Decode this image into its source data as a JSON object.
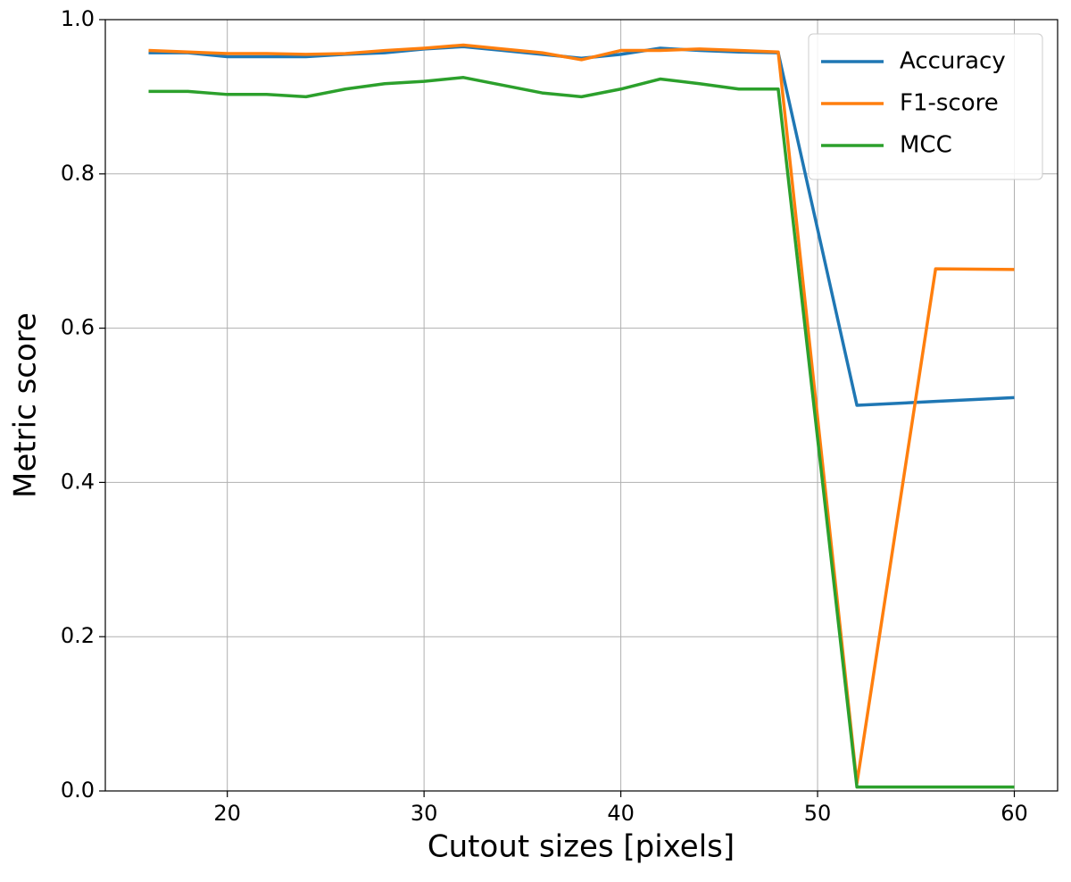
{
  "chart_data": {
    "type": "line",
    "x_label": "Cutout sizes [pixels]",
    "y_label": "Metric score",
    "x": [
      16,
      18,
      20,
      22,
      24,
      26,
      28,
      30,
      32,
      34,
      36,
      38,
      40,
      42,
      44,
      46,
      48,
      52,
      56,
      60
    ],
    "series": [
      {
        "name": "Accuracy",
        "color": "#1f77b4",
        "values": [
          0.957,
          0.957,
          0.952,
          0.952,
          0.952,
          0.955,
          0.957,
          0.962,
          0.965,
          0.96,
          0.955,
          0.95,
          0.955,
          0.963,
          0.96,
          0.958,
          0.957,
          0.5,
          0.505,
          0.51
        ]
      },
      {
        "name": "F1-score",
        "color": "#ff7f0e",
        "values": [
          0.96,
          0.958,
          0.956,
          0.956,
          0.955,
          0.956,
          0.96,
          0.963,
          0.967,
          0.962,
          0.957,
          0.948,
          0.96,
          0.96,
          0.962,
          0.96,
          0.958,
          0.01,
          0.677,
          0.676
        ]
      },
      {
        "name": "MCC",
        "color": "#2ca02c",
        "values": [
          0.907,
          0.907,
          0.903,
          0.903,
          0.9,
          0.91,
          0.917,
          0.92,
          0.925,
          0.915,
          0.905,
          0.9,
          0.91,
          0.923,
          0.917,
          0.91,
          0.91,
          0.005,
          0.005,
          0.005
        ]
      }
    ],
    "xlim": [
      13.8,
      62.2
    ],
    "ylim": [
      0,
      1
    ],
    "xticks": [
      20,
      30,
      40,
      50,
      60
    ],
    "yticks": [
      {
        "value": 0,
        "label": "0.0"
      },
      {
        "value": 0.2,
        "label": "0.2"
      },
      {
        "value": 0.4,
        "label": "0.4"
      },
      {
        "value": 0.6,
        "label": "0.6"
      },
      {
        "value": 0.8,
        "label": "0.8"
      },
      {
        "value": 1,
        "label": "1.0"
      }
    ],
    "grid": true,
    "legend": "upper right"
  }
}
